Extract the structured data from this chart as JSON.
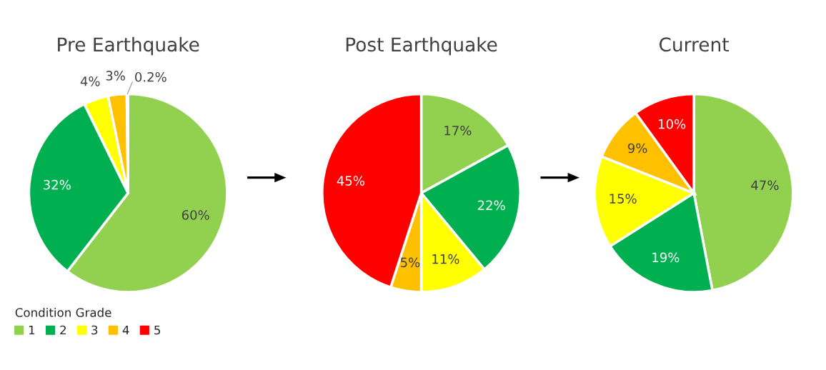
{
  "chart_data": [
    {
      "type": "pie",
      "title": "Pre Earthquake",
      "categories": [
        "1",
        "2",
        "3",
        "4",
        "5"
      ],
      "values": [
        60,
        32,
        4,
        3,
        0.2
      ],
      "value_labels": [
        "60%",
        "32%",
        "4%",
        "3%",
        "0.2%"
      ],
      "colors": [
        "#92d050",
        "#00b050",
        "#ffff00",
        "#ffc000",
        "#ff0000"
      ],
      "legend": "bottom left",
      "legend_title": "Condition Grade"
    },
    {
      "type": "pie",
      "title": "Post Earthquake",
      "categories": [
        null,
        null,
        null,
        null,
        null
      ],
      "values": [
        17,
        22,
        11,
        5,
        45
      ],
      "value_labels": [
        "17%",
        "22%",
        "11%",
        "5%",
        "45%"
      ],
      "colors": [
        "#92d050",
        "#00b050",
        "#ffff00",
        "#ffc000",
        "#ff0000"
      ]
    },
    {
      "type": "pie",
      "title": "Current",
      "categories": [
        null,
        null,
        null,
        null,
        null
      ],
      "values": [
        47,
        19,
        15,
        9,
        10
      ],
      "value_labels": [
        "47%",
        "19%",
        "15%",
        "9%",
        "10%"
      ],
      "colors": [
        "#92d050",
        "#00b050",
        "#ffff00",
        "#ffc000",
        "#ff0000"
      ]
    }
  ]
}
